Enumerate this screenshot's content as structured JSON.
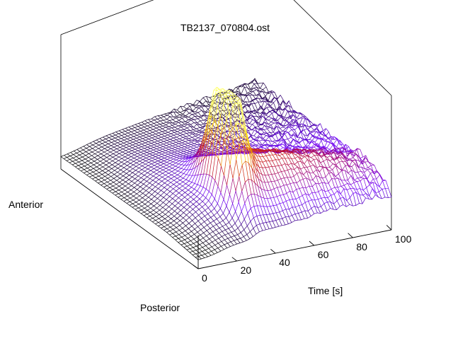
{
  "chart_data": {
    "type": "surface",
    "title": "TB2137_070804.ost",
    "xlabel": "Time [s]",
    "ylabel_far": "Anterior",
    "ylabel_near": "Posterior",
    "x_ticks": [
      "0",
      "20",
      "40",
      "60",
      "80",
      "100"
    ],
    "xlim": [
      0,
      100
    ],
    "colormap": [
      "#000000",
      "#7000ff",
      "#c81414",
      "#ffd000",
      "#ffff66"
    ],
    "grid": false,
    "surface": {
      "x_samples": 60,
      "y_samples": 48,
      "peak": {
        "time": 33,
        "depth_fraction": 0.25,
        "relative_height": 1.0
      },
      "ridge": {
        "time_start": 33,
        "time_end": 100,
        "depth_start": 0.25,
        "depth_end": 0.05,
        "relative_height": 0.55
      }
    }
  }
}
